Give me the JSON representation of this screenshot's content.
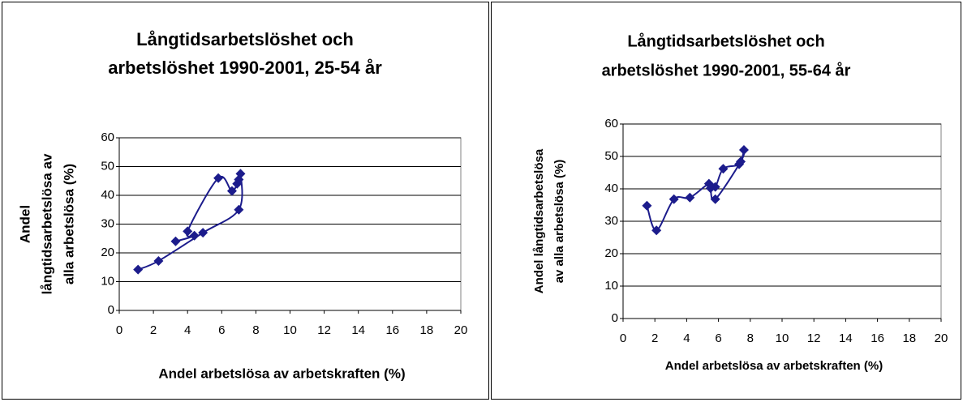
{
  "chart_data": [
    {
      "type": "scatter",
      "title": [
        "Långtidsarbetslöshet och",
        "arbetslöshet 1990-2001, 25-54 år"
      ],
      "xlabel": "Andel arbetslösa av arbetskraften (%)",
      "ylabel": [
        "Andel",
        "långtidsarbetslösa av",
        "alla arbetslösa (%)"
      ],
      "series": [
        {
          "color": "#1c1c8c",
          "x": [
            1.1,
            2.3,
            4.9,
            7.0,
            7.1,
            6.9,
            7.0,
            6.6,
            5.8,
            4.0,
            4.4,
            3.3
          ],
          "values": [
            14.2,
            17.2,
            27,
            35,
            47.5,
            44,
            45.5,
            41.5,
            46,
            27.5,
            26,
            24
          ]
        }
      ],
      "xlim": [
        0,
        20
      ],
      "xticks": [
        0,
        2,
        4,
        6,
        8,
        10,
        12,
        14,
        16,
        18,
        20
      ],
      "ylim": [
        0,
        60
      ],
      "yticks": [
        0,
        10,
        20,
        30,
        40,
        50,
        60
      ],
      "grid": true
    },
    {
      "type": "scatter",
      "title": [
        "Långtidsarbetslöshet och",
        "arbetslöshet 1990-2001, 55-64 år"
      ],
      "xlabel": "Andel arbetslösa av arbetskraften (%)",
      "ylabel": [
        "Andel långtidsarbetslösa",
        "av alla arbetslösa (%)"
      ],
      "series": [
        {
          "color": "#1c1c8c",
          "x": [
            1.5,
            2.1,
            3.2,
            4.2,
            5.4,
            5.8,
            6.3,
            7.3,
            7.6,
            7.4,
            5.8,
            5.5
          ],
          "values": [
            34.8,
            27.2,
            36.8,
            37.3,
            41.6,
            40.6,
            46.2,
            47.6,
            52,
            48.4,
            36.8,
            40.2
          ]
        }
      ],
      "xlim": [
        0,
        20
      ],
      "xticks": [
        0,
        2,
        4,
        6,
        8,
        10,
        12,
        14,
        16,
        18,
        20
      ],
      "ylim": [
        0,
        60
      ],
      "yticks": [
        0,
        10,
        20,
        30,
        40,
        50,
        60
      ],
      "grid": true
    }
  ]
}
